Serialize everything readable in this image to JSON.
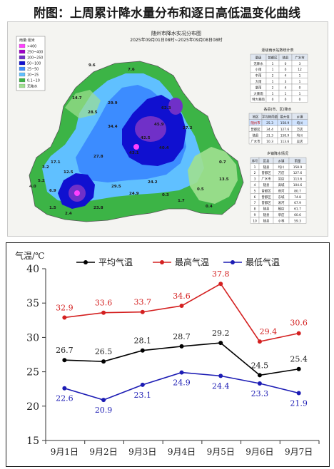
{
  "page_title": "附图：上周累计降水量分布和逐日高低温变化曲线",
  "map": {
    "title": "随州市降水实况分布图",
    "subtitle": "2025年09月01日08时~2025年09月08日08时",
    "legend_title": "雨量:毫米",
    "legend": [
      {
        "label": ">400",
        "color": "#ff40ff"
      },
      {
        "label": "250~400",
        "color": "#a000c8"
      },
      {
        "label": "100~250",
        "color": "#7030c8"
      },
      {
        "label": "50~100",
        "color": "#1010d0"
      },
      {
        "label": "25~50",
        "color": "#3c8cff"
      },
      {
        "label": "10~25",
        "color": "#60c0ff"
      },
      {
        "label": "0.1~10",
        "color": "#3cb446"
      },
      {
        "label": "无降水",
        "color": "#a0e090"
      }
    ],
    "station_values": [
      "9.6",
      "7.6",
      "14.7",
      "29.9",
      "28.5",
      "34.4",
      "45.9",
      "62.3",
      "43.1",
      "27.2",
      "17.1",
      "27.8",
      "3.2",
      "5.2",
      "4.0",
      "12.5",
      "6.9",
      "1.5",
      "2.4",
      "23.8",
      "29.5",
      "24.9",
      "24.2",
      "42.5",
      "40.4",
      "0.7",
      "0.5",
      "0.4",
      "13.5",
      "0.3",
      "1.7"
    ],
    "table1": {
      "title": "逐级雨水站数统计表",
      "headers": [
        "量级",
        "曾都区",
        "随县",
        "广水市"
      ],
      "rows": [
        [
          "无降水",
          "1",
          "0",
          "3"
        ],
        [
          "小雨",
          "1",
          "0",
          "12"
        ],
        [
          "中雨",
          "2",
          "4",
          "1"
        ],
        [
          "大雨",
          "1",
          "3",
          "1"
        ],
        [
          "暴雨",
          "2",
          "4",
          "0"
        ],
        [
          "大暴雨",
          "1",
          "1",
          "1"
        ],
        [
          "特大暴雨",
          "0",
          "0",
          "0"
        ]
      ]
    },
    "table2": {
      "title": "各县(市、区)降水",
      "headers": [
        "地区",
        "平均降雨量",
        "最大值",
        "乡镇"
      ],
      "rows": [
        [
          "随州市",
          "25.3",
          "158.9",
          "均川"
        ],
        [
          "曾都区",
          "34.4",
          "127.6",
          "万店"
        ],
        [
          "随县",
          "31.3",
          "158.9",
          "均川"
        ],
        [
          "广水市",
          "10.3",
          "113.6",
          "吴店"
        ]
      ]
    },
    "table3": {
      "title": "乡镇降水情况",
      "headers": [
        "序号",
        "区县",
        "乡镇",
        "雨量"
      ],
      "rows": [
        [
          "1",
          "随县",
          "均川",
          "158.9"
        ],
        [
          "2",
          "曾都区",
          "万店",
          "127.6"
        ],
        [
          "3",
          "广水市",
          "吴店",
          "113.6"
        ],
        [
          "4",
          "随县",
          "高城",
          "104.6"
        ],
        [
          "5",
          "曾都区",
          "府河",
          "80.7"
        ],
        [
          "6",
          "曾都区",
          "东城",
          "74.8"
        ],
        [
          "7",
          "曾都区",
          "淅河",
          "67.9"
        ],
        [
          "8",
          "随县",
          "殷店",
          "61.7"
        ],
        [
          "9",
          "随县",
          "草店",
          "60.6"
        ],
        [
          "10",
          "随县",
          "小林",
          "59.3"
        ]
      ]
    }
  },
  "chart_data": {
    "type": "line",
    "ylabel": "气温/℃",
    "ylim": [
      15,
      40
    ],
    "yticks": [
      15,
      20,
      25,
      30,
      35,
      40
    ],
    "categories": [
      "9月1日",
      "9月2日",
      "9月3日",
      "9月4日",
      "9月5日",
      "9月6日",
      "9月7日"
    ],
    "series": [
      {
        "name": "平均气温",
        "color": "#000000",
        "values": [
          26.7,
          26.5,
          28.1,
          28.7,
          29.2,
          24.5,
          25.4
        ]
      },
      {
        "name": "最高气温",
        "color": "#d42020",
        "values": [
          32.9,
          33.6,
          33.7,
          34.6,
          37.8,
          29.4,
          30.6
        ]
      },
      {
        "name": "最低气温",
        "color": "#1c1cb4",
        "values": [
          22.6,
          20.9,
          23.1,
          24.9,
          24.4,
          23.3,
          21.9
        ]
      }
    ],
    "legend_position": "top",
    "grid": false
  }
}
